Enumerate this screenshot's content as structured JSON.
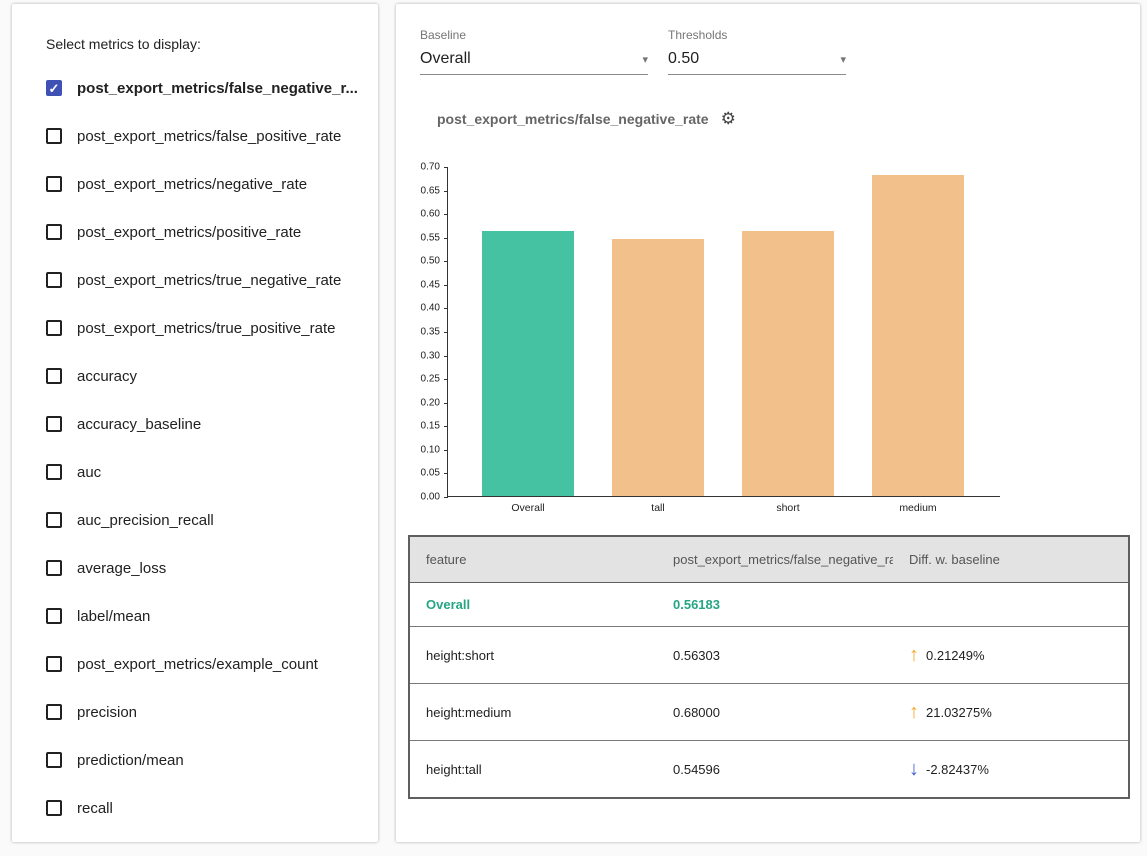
{
  "left_panel": {
    "title": "Select metrics to display:",
    "metrics": [
      {
        "label": "post_export_metrics/false_negative_r...",
        "checked": true
      },
      {
        "label": "post_export_metrics/false_positive_rate",
        "checked": false
      },
      {
        "label": "post_export_metrics/negative_rate",
        "checked": false
      },
      {
        "label": "post_export_metrics/positive_rate",
        "checked": false
      },
      {
        "label": "post_export_metrics/true_negative_rate",
        "checked": false
      },
      {
        "label": "post_export_metrics/true_positive_rate",
        "checked": false
      },
      {
        "label": "accuracy",
        "checked": false
      },
      {
        "label": "accuracy_baseline",
        "checked": false
      },
      {
        "label": "auc",
        "checked": false
      },
      {
        "label": "auc_precision_recall",
        "checked": false
      },
      {
        "label": "average_loss",
        "checked": false
      },
      {
        "label": "label/mean",
        "checked": false
      },
      {
        "label": "post_export_metrics/example_count",
        "checked": false
      },
      {
        "label": "precision",
        "checked": false
      },
      {
        "label": "prediction/mean",
        "checked": false
      },
      {
        "label": "recall",
        "checked": false
      }
    ]
  },
  "controls": {
    "baseline": {
      "label": "Baseline",
      "value": "Overall"
    },
    "thresholds": {
      "label": "Thresholds",
      "value": "0.50"
    }
  },
  "chart_title": "post_export_metrics/false_negative_rate",
  "chart_data": {
    "type": "bar",
    "title": "post_export_metrics/false_negative_rate",
    "categories": [
      "Overall",
      "tall",
      "short",
      "medium"
    ],
    "values": [
      0.56183,
      0.54596,
      0.56303,
      0.68
    ],
    "bar_colors": [
      "#45c2a2",
      "#f1c08b",
      "#f1c08b",
      "#f1c08b"
    ],
    "xlabel": "",
    "ylabel": "",
    "ylim": [
      0,
      0.7
    ],
    "ytick_step": 0.05,
    "grid": false,
    "legend": "none"
  },
  "table": {
    "headers": [
      "feature",
      "post_export_metrics/false_negative_rat...",
      "Diff. w. baseline"
    ],
    "rows": [
      {
        "feature": "Overall",
        "value": "0.56183",
        "diff": "",
        "direction": "",
        "baseline": true
      },
      {
        "feature": "height:short",
        "value": "0.56303",
        "diff": "0.21249%",
        "direction": "up",
        "baseline": false
      },
      {
        "feature": "height:medium",
        "value": "0.68000",
        "diff": "21.03275%",
        "direction": "up",
        "baseline": false
      },
      {
        "feature": "height:tall",
        "value": "0.54596",
        "diff": "-2.82437%",
        "direction": "down",
        "baseline": false
      }
    ]
  },
  "icons": {
    "gear": "⚙",
    "dropdown_arrow": "▾",
    "check": "✓",
    "up_arrow": "↑",
    "down_arrow": "↓"
  },
  "colors": {
    "baseline_bar": "#45c2a2",
    "slice_bar": "#f1c08b",
    "checkbox_checked": "#3f51b5",
    "teal_text": "#26a584",
    "up_arrow": "#f5a728",
    "down_arrow": "#3f5bd6"
  }
}
